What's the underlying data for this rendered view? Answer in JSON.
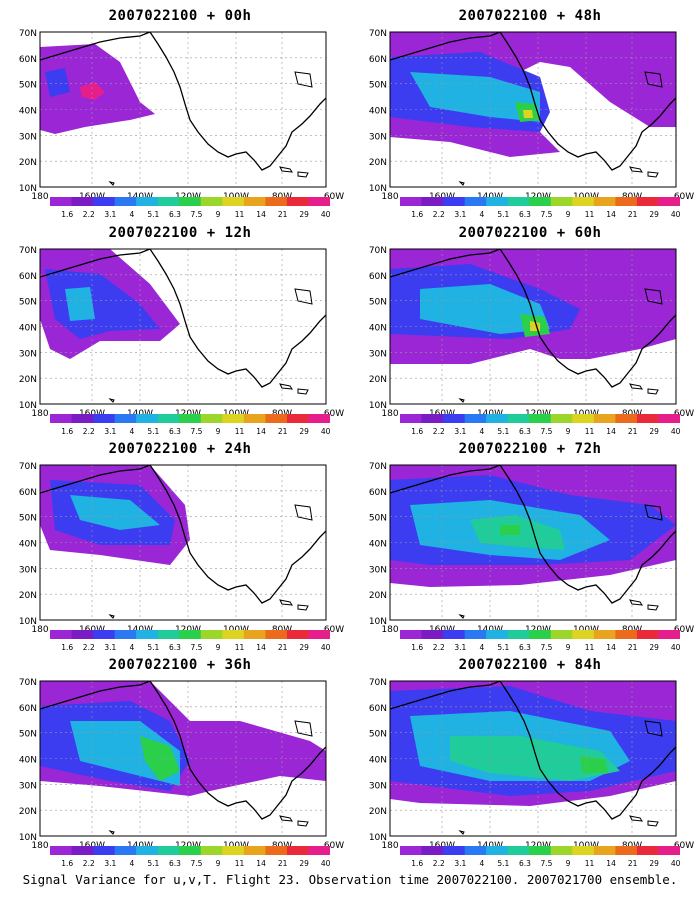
{
  "caption": "Signal Variance for u,v,T. Flight 23. Observation time 2007022100. 2007021700 ensemble.",
  "lat_labels": [
    "70N",
    "60N",
    "50N",
    "40N",
    "30N",
    "20N",
    "10N"
  ],
  "lon_labels": [
    "180",
    "160W",
    "140W",
    "120W",
    "100W",
    "80W",
    "60W"
  ],
  "colorbar": {
    "labels": [
      "1.6",
      "2.2",
      "3.1",
      "4",
      "5.1",
      "6.3",
      "7.5",
      "9",
      "11",
      "14",
      "21",
      "29",
      "40"
    ],
    "colors": [
      "#9b26d6",
      "#7a1cc4",
      "#3c3cf0",
      "#2a78f2",
      "#1fb2e2",
      "#20cc9a",
      "#2bd04a",
      "#9bd62a",
      "#dcd420",
      "#e8a41c",
      "#ec6a1c",
      "#ea2a3a",
      "#e61e8c"
    ]
  },
  "panels": [
    {
      "title": "2007022100 + 00h"
    },
    {
      "title": "2007022100 + 48h"
    },
    {
      "title": "2007022100 + 12h"
    },
    {
      "title": "2007022100 + 60h"
    },
    {
      "title": "2007022100 + 24h"
    },
    {
      "title": "2007022100 + 72h"
    },
    {
      "title": "2007022100 + 36h"
    },
    {
      "title": "2007022100 + 84h"
    }
  ]
}
